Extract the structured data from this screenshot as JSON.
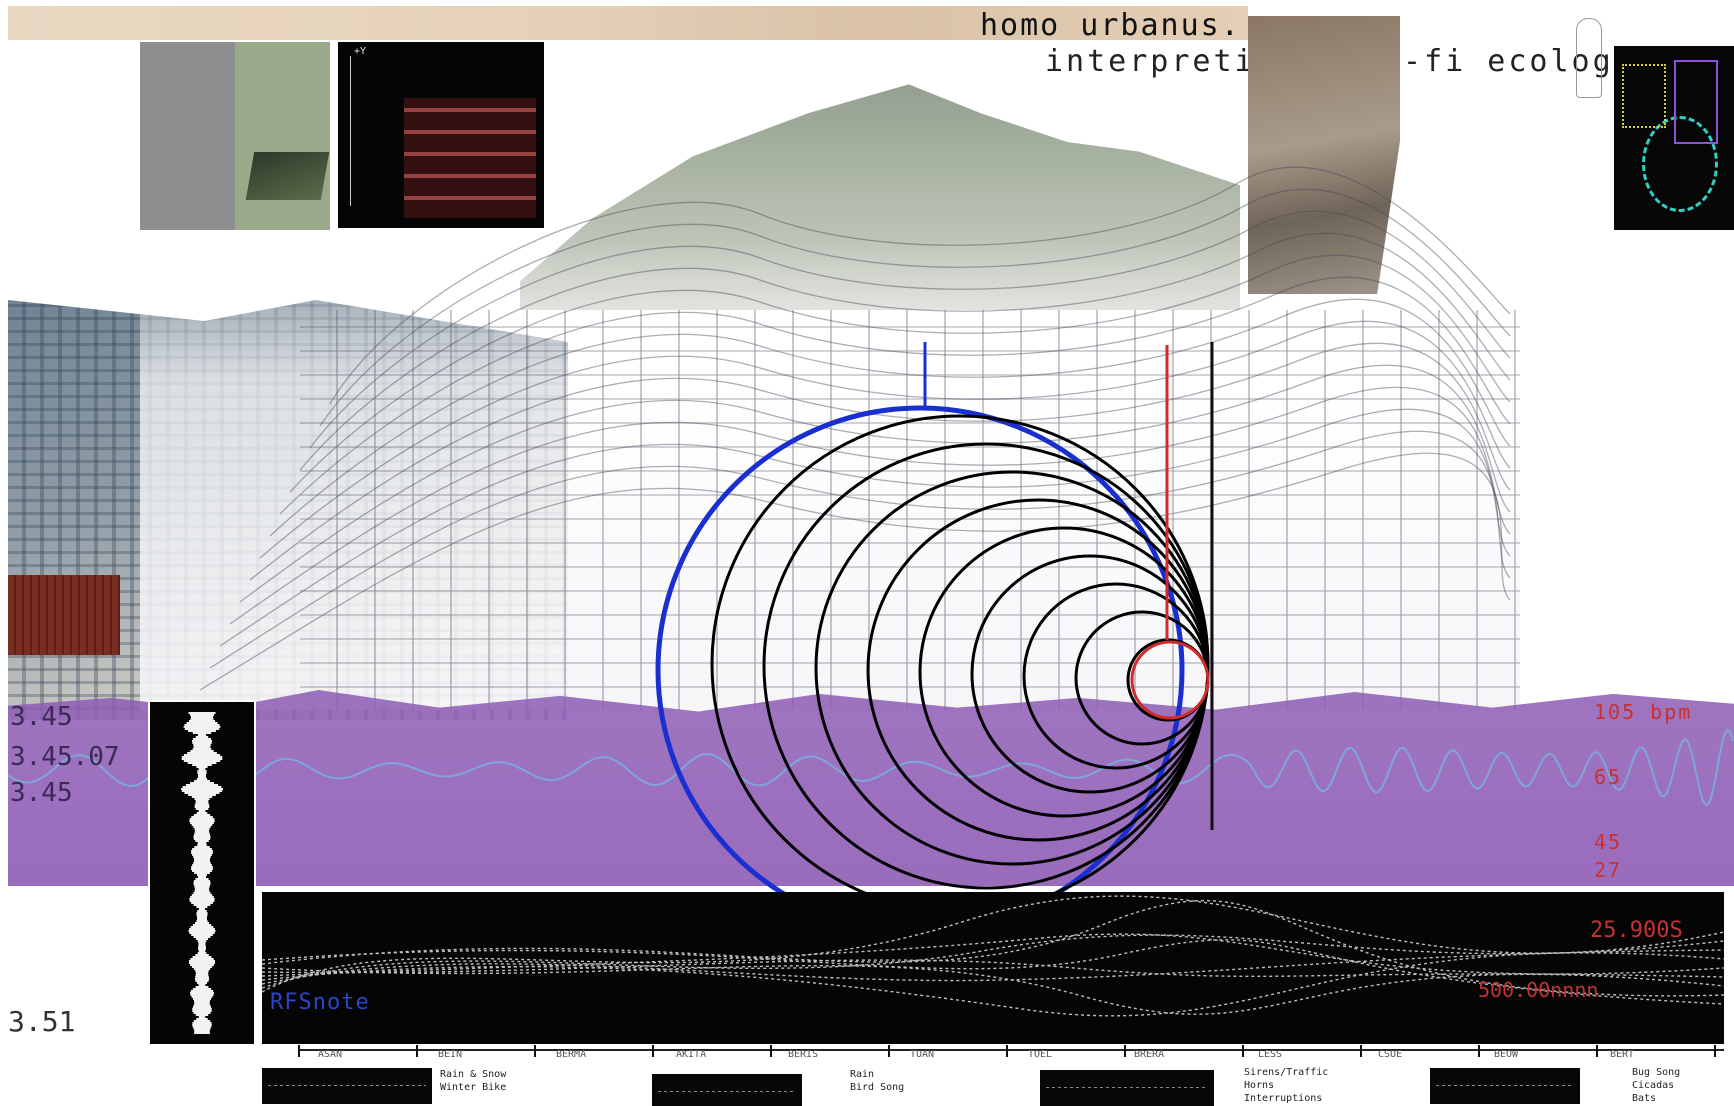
{
  "title": {
    "line1": "homo urbanus.",
    "line2": "interpreting a lo-fi ecology"
  },
  "readouts": {
    "left_top": "3.45",
    "left_mid": "3.45.07",
    "left_bottom": "3.45",
    "bottom_value": "3.51",
    "red_top": "105 bpm",
    "red_2": "65",
    "red_3": "45",
    "red_4": "27",
    "panel_red_1": "25.900S",
    "panel_red_2": "500.00nnnn",
    "panel_blue": "RFSnote"
  },
  "ruler_labels": [
    "ASAN",
    "BEIN",
    "BERMA",
    "AKITA",
    "BERIS",
    "TUAN",
    "TOEL",
    "BRERA",
    "LESS",
    "CSUE",
    "BEOW",
    "BERT"
  ],
  "legend": [
    {
      "line1": "Rain & Snow",
      "line2": "Winter Bike"
    },
    {
      "line1": "Rain",
      "line2": "Bird Song"
    },
    {
      "line1": "Sirens/Traffic",
      "line2": "Horns",
      "line3": "Interruptions"
    },
    {
      "line1": "Bug Song",
      "line2": "Cicadas",
      "line3": "Bats"
    }
  ],
  "colors": {
    "purple_band": "#8e5cb5",
    "blue_circle": "#1a2fd0",
    "black_circles": "#000000",
    "red_marker": "#d22a2a",
    "wave_line": "#7fa6d8"
  }
}
